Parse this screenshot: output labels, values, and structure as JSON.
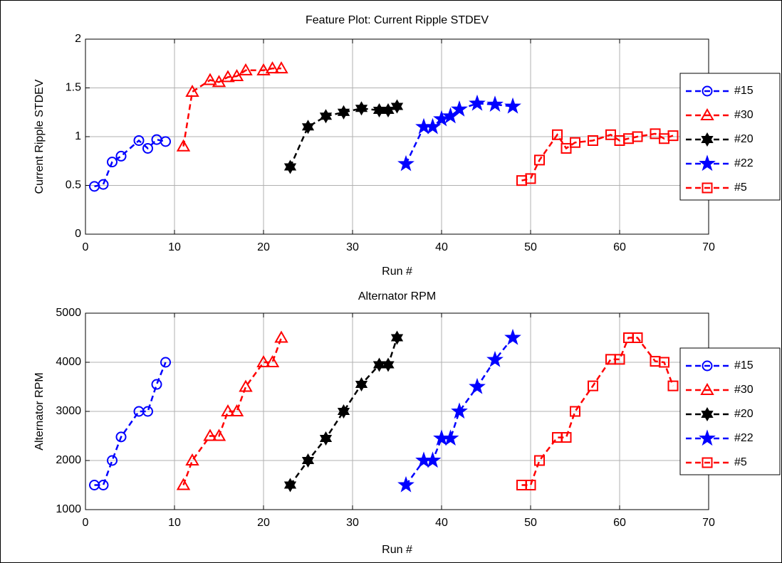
{
  "chart_data": [
    {
      "type": "line",
      "title": "Feature Plot: Current Ripple STDEV",
      "xlabel": "Run #",
      "ylabel": "Current Ripple STDEV",
      "xlim": [
        0,
        70
      ],
      "ylim": [
        0,
        2
      ],
      "xticks": [
        0,
        10,
        20,
        30,
        40,
        50,
        60,
        70
      ],
      "yticks": [
        0,
        0.5,
        1,
        1.5,
        2
      ],
      "grid": true,
      "legend_location": "east",
      "series": [
        {
          "name": "#15",
          "color": "#0000ff",
          "marker": "o",
          "x": [
            1,
            2,
            3,
            4,
            6,
            7,
            8,
            9
          ],
          "values": [
            0.49,
            0.51,
            0.74,
            0.8,
            0.96,
            0.88,
            0.97,
            0.95
          ]
        },
        {
          "name": "#30",
          "color": "#ff0000",
          "marker": "^",
          "x": [
            11,
            12,
            14,
            15,
            16,
            17,
            18,
            20,
            21,
            22
          ],
          "values": [
            0.9,
            1.46,
            1.58,
            1.56,
            1.61,
            1.62,
            1.68,
            1.68,
            1.7,
            1.7
          ]
        },
        {
          "name": "#20",
          "color": "#000000",
          "marker": "h",
          "x": [
            23,
            25,
            27,
            29,
            31,
            33,
            34,
            35
          ],
          "values": [
            0.69,
            1.1,
            1.21,
            1.25,
            1.29,
            1.27,
            1.27,
            1.31
          ]
        },
        {
          "name": "#22",
          "color": "#0000ff",
          "marker": "p",
          "x": [
            36,
            38,
            39,
            40,
            41,
            42,
            44,
            46,
            48
          ],
          "values": [
            0.72,
            1.1,
            1.1,
            1.18,
            1.21,
            1.28,
            1.34,
            1.33,
            1.31
          ]
        },
        {
          "name": "#5",
          "color": "#ff0000",
          "marker": "s",
          "x": [
            49,
            50,
            51,
            53,
            54,
            55,
            57,
            59,
            60,
            61,
            62,
            64,
            65,
            66
          ],
          "values": [
            0.55,
            0.57,
            0.76,
            1.02,
            0.88,
            0.94,
            0.96,
            1.02,
            0.96,
            0.98,
            1.0,
            1.03,
            0.98,
            1.01
          ]
        }
      ]
    },
    {
      "type": "line",
      "title": "Alternator RPM",
      "xlabel": "Run #",
      "ylabel": "Alternator RPM",
      "xlim": [
        0,
        70
      ],
      "ylim": [
        1000,
        5000
      ],
      "xticks": [
        0,
        10,
        20,
        30,
        40,
        50,
        60,
        70
      ],
      "yticks": [
        1000,
        2000,
        3000,
        4000,
        5000
      ],
      "grid": true,
      "legend_location": "east",
      "series": [
        {
          "name": "#15",
          "color": "#0000ff",
          "marker": "o",
          "x": [
            1,
            2,
            3,
            4,
            6,
            7,
            8,
            9
          ],
          "values": [
            1500,
            1500,
            2000,
            2480,
            3000,
            3000,
            3550,
            4000
          ]
        },
        {
          "name": "#30",
          "color": "#ff0000",
          "marker": "^",
          "x": [
            11,
            12,
            14,
            15,
            16,
            17,
            18,
            20,
            21,
            22
          ],
          "values": [
            1500,
            2000,
            2500,
            2500,
            3000,
            3000,
            3500,
            4000,
            4000,
            4500
          ]
        },
        {
          "name": "#20",
          "color": "#000000",
          "marker": "h",
          "x": [
            23,
            25,
            27,
            29,
            31,
            33,
            34,
            35
          ],
          "values": [
            1500,
            2000,
            2450,
            3000,
            3550,
            3950,
            3950,
            4500
          ]
        },
        {
          "name": "#22",
          "color": "#0000ff",
          "marker": "p",
          "x": [
            36,
            38,
            39,
            40,
            41,
            42,
            44,
            46,
            48
          ],
          "values": [
            1500,
            2000,
            2000,
            2450,
            2450,
            3000,
            3500,
            4050,
            4500
          ]
        },
        {
          "name": "#5",
          "color": "#ff0000",
          "marker": "s",
          "x": [
            49,
            50,
            51,
            53,
            54,
            55,
            57,
            59,
            60,
            61,
            62,
            64,
            65,
            66
          ],
          "values": [
            1500,
            1500,
            2000,
            2470,
            2470,
            3000,
            3520,
            4060,
            4060,
            4500,
            4500,
            4020,
            4000,
            3520
          ]
        }
      ]
    }
  ]
}
